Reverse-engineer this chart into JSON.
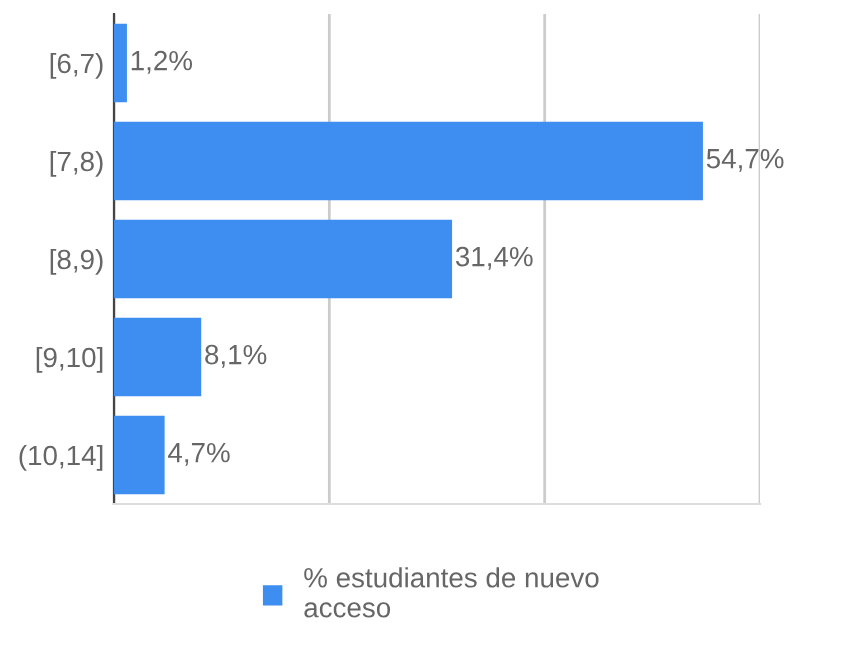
{
  "chart_data": {
    "type": "bar",
    "orientation": "horizontal",
    "categories": [
      "[6,7)",
      "[7,8)",
      "[8,9)",
      "[9,10]",
      "(10,14]"
    ],
    "series": [
      {
        "name": "% estudiantes de nuevo acceso",
        "color": "#3d8ef0",
        "values": [
          1.2,
          54.7,
          31.4,
          8.1,
          4.7
        ],
        "value_labels": [
          "1,2%",
          "54,7%",
          "31,4%",
          "8,1%",
          "4,7%"
        ]
      }
    ],
    "xlim": [
      0,
      60
    ],
    "xticks": [
      {
        "value": 0,
        "label": null
      },
      {
        "value": 20,
        "label": null
      },
      {
        "value": 40,
        "label": null
      },
      {
        "value": 60,
        "label": null
      }
    ],
    "grid": "x",
    "legend": "bottom",
    "tick_labels": "y"
  }
}
